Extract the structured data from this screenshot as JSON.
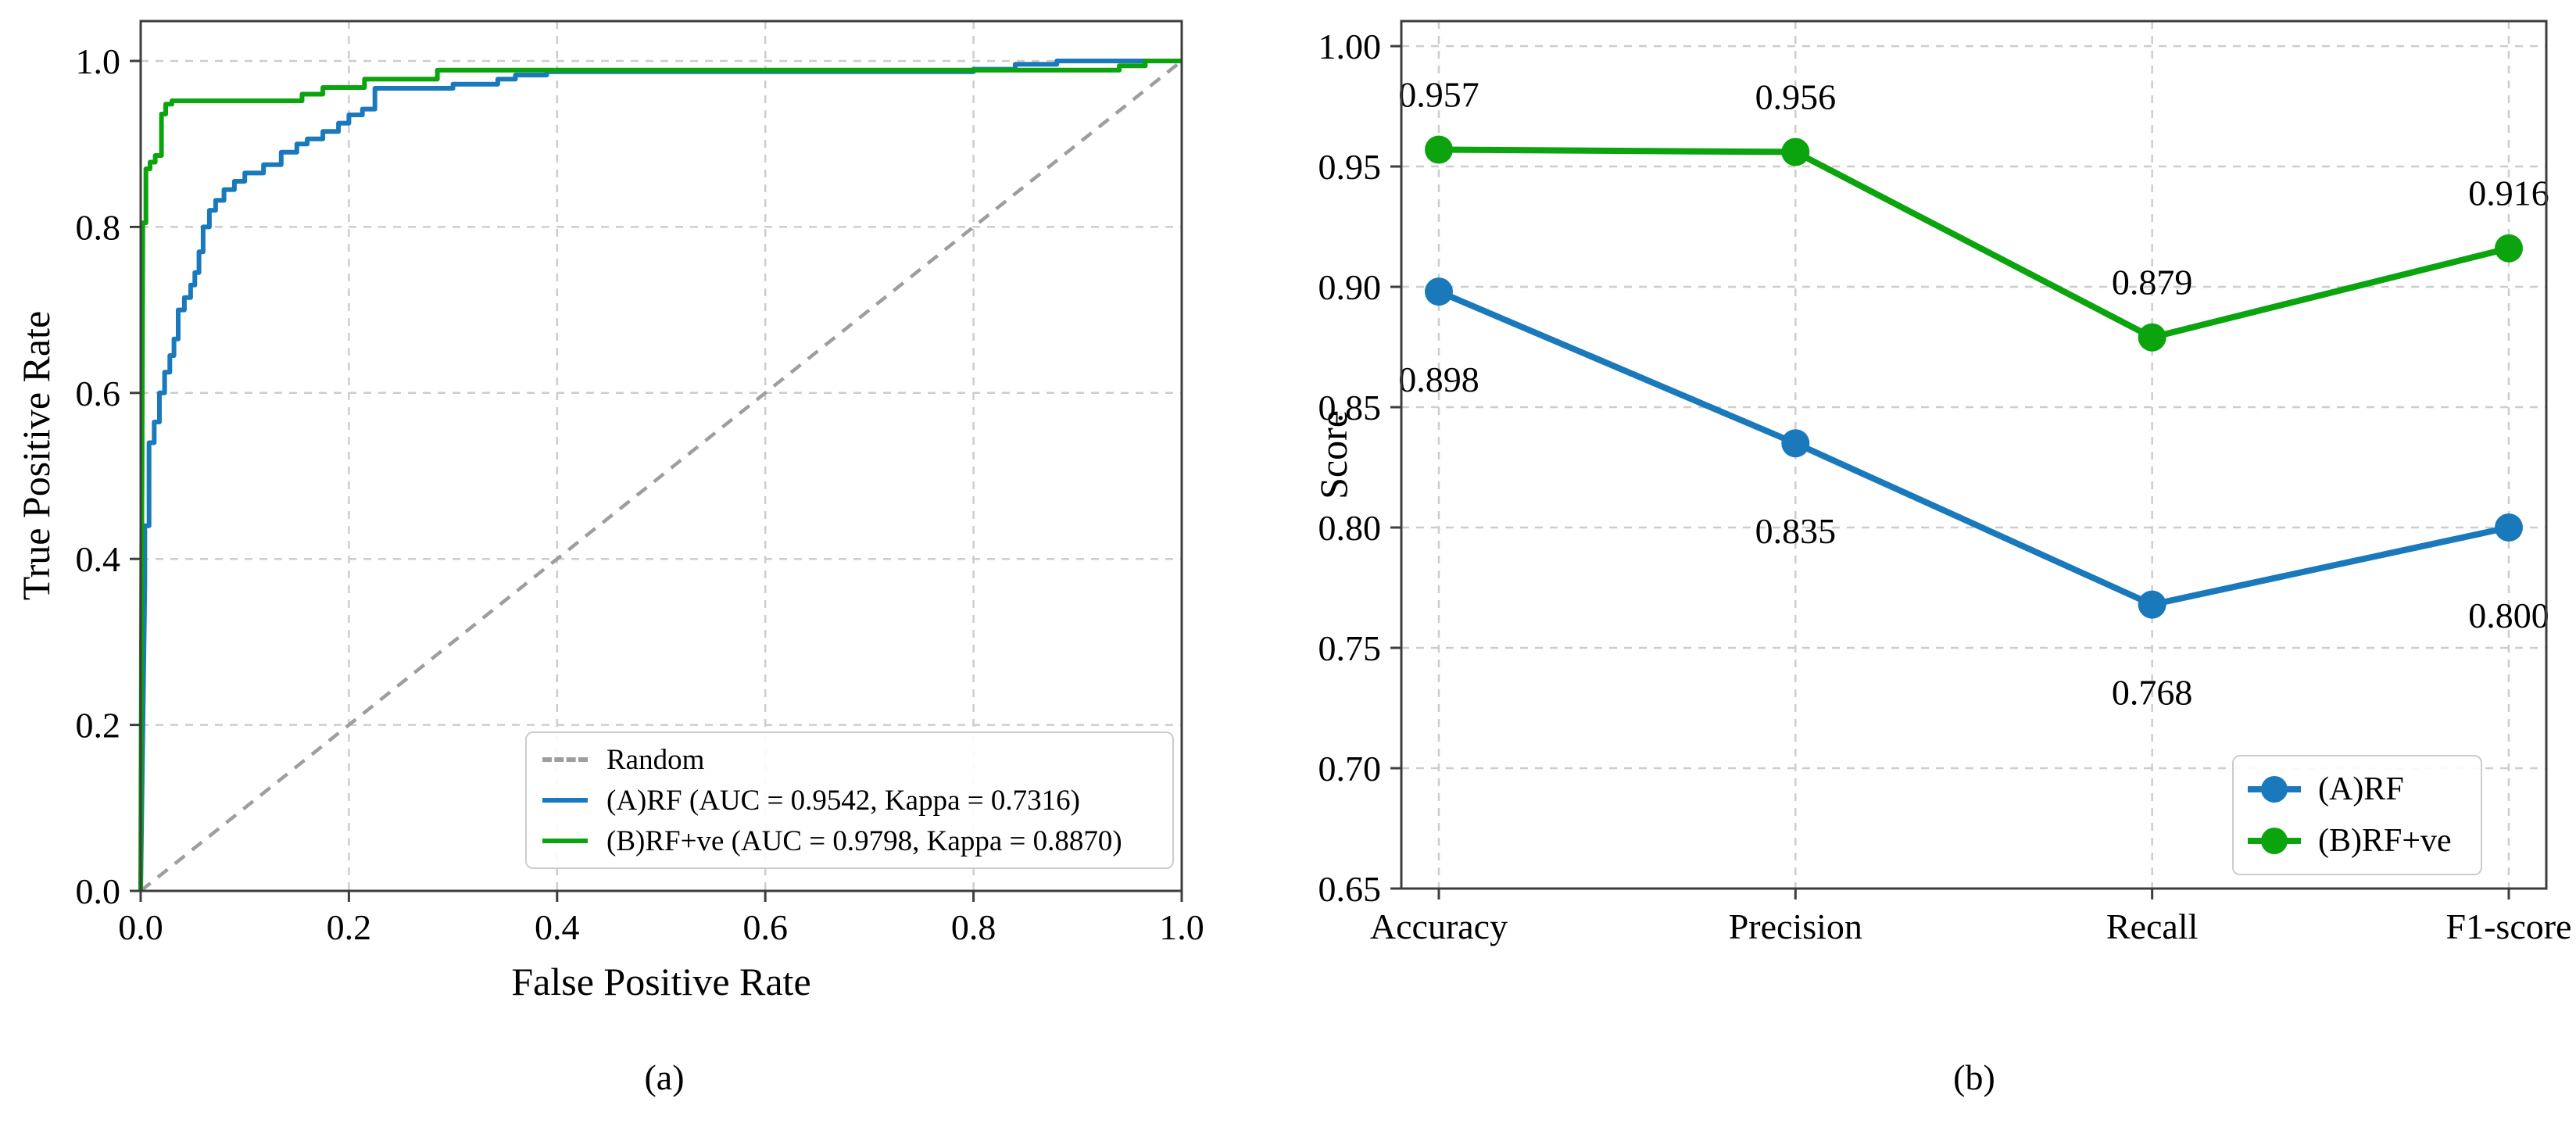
{
  "figure": {
    "background": "#ffffff"
  },
  "colors": {
    "blue": "#1a79bb",
    "green": "#0ba30e",
    "random_gray": "#9e9e9e",
    "grid": "#cdcdcd",
    "spine": "#3d3d3d",
    "text": "#000000"
  },
  "chart_data": [
    {
      "id": "roc",
      "type": "line",
      "panel": "a",
      "caption": "(a)",
      "xlabel": "False Positive Rate",
      "ylabel": "True Positive Rate",
      "xlim": [
        0,
        1
      ],
      "ylim": [
        0,
        1.048
      ],
      "grid": true,
      "legend_position": "lower right",
      "xticks": [
        0.0,
        0.2,
        0.4,
        0.6,
        0.8,
        1.0
      ],
      "xticklabels": [
        "0.0",
        "0.2",
        "0.4",
        "0.6",
        "0.8",
        "1.0"
      ],
      "yticks": [
        0.0,
        0.2,
        0.4,
        0.6,
        0.8,
        1.0
      ],
      "yticklabels": [
        "0.0",
        "0.2",
        "0.4",
        "0.6",
        "0.8",
        "1.0"
      ],
      "series": [
        {
          "name": "Random",
          "style": "dashed",
          "color": "#9e9e9e",
          "width": 4.5,
          "points": [
            [
              0,
              0
            ],
            [
              1,
              1
            ]
          ]
        },
        {
          "name": "(A)RF (AUC = 0.9542, Kappa = 0.7316)",
          "style": "solid",
          "color": "#1a79bb",
          "width": 6,
          "points": [
            [
              0.0,
              0.0
            ],
            [
              0.004,
              0.37
            ],
            [
              0.004,
              0.44
            ],
            [
              0.008,
              0.44
            ],
            [
              0.008,
              0.54
            ],
            [
              0.013,
              0.54
            ],
            [
              0.013,
              0.565
            ],
            [
              0.018,
              0.565
            ],
            [
              0.018,
              0.6
            ],
            [
              0.023,
              0.6
            ],
            [
              0.023,
              0.625
            ],
            [
              0.028,
              0.625
            ],
            [
              0.028,
              0.645
            ],
            [
              0.032,
              0.645
            ],
            [
              0.032,
              0.665
            ],
            [
              0.036,
              0.665
            ],
            [
              0.036,
              0.7
            ],
            [
              0.042,
              0.7
            ],
            [
              0.042,
              0.715
            ],
            [
              0.048,
              0.715
            ],
            [
              0.048,
              0.73
            ],
            [
              0.052,
              0.73
            ],
            [
              0.052,
              0.745
            ],
            [
              0.056,
              0.745
            ],
            [
              0.056,
              0.77
            ],
            [
              0.06,
              0.77
            ],
            [
              0.06,
              0.8
            ],
            [
              0.066,
              0.8
            ],
            [
              0.066,
              0.82
            ],
            [
              0.072,
              0.82
            ],
            [
              0.072,
              0.832
            ],
            [
              0.08,
              0.832
            ],
            [
              0.08,
              0.845
            ],
            [
              0.09,
              0.845
            ],
            [
              0.09,
              0.855
            ],
            [
              0.1,
              0.855
            ],
            [
              0.1,
              0.865
            ],
            [
              0.118,
              0.865
            ],
            [
              0.118,
              0.875
            ],
            [
              0.135,
              0.875
            ],
            [
              0.135,
              0.89
            ],
            [
              0.15,
              0.89
            ],
            [
              0.15,
              0.9
            ],
            [
              0.16,
              0.9
            ],
            [
              0.16,
              0.906
            ],
            [
              0.175,
              0.906
            ],
            [
              0.175,
              0.915
            ],
            [
              0.19,
              0.915
            ],
            [
              0.19,
              0.925
            ],
            [
              0.2,
              0.925
            ],
            [
              0.2,
              0.935
            ],
            [
              0.213,
              0.935
            ],
            [
              0.213,
              0.942
            ],
            [
              0.225,
              0.942
            ],
            [
              0.225,
              0.967
            ],
            [
              0.3,
              0.967
            ],
            [
              0.3,
              0.972
            ],
            [
              0.343,
              0.972
            ],
            [
              0.343,
              0.978
            ],
            [
              0.36,
              0.978
            ],
            [
              0.36,
              0.983
            ],
            [
              0.39,
              0.983
            ],
            [
              0.39,
              0.987
            ],
            [
              0.8,
              0.987
            ],
            [
              0.8,
              0.99
            ],
            [
              0.84,
              0.99
            ],
            [
              0.84,
              0.996
            ],
            [
              0.88,
              0.996
            ],
            [
              0.88,
              1.0
            ],
            [
              1.0,
              1.0
            ]
          ]
        },
        {
          "name": "(B)RF+ve (AUC = 0.9798, Kappa = 0.8870)",
          "style": "solid",
          "color": "#0ba30e",
          "width": 6,
          "points": [
            [
              0.0,
              0.0
            ],
            [
              0.002,
              0.79
            ],
            [
              0.002,
              0.805
            ],
            [
              0.005,
              0.805
            ],
            [
              0.005,
              0.87
            ],
            [
              0.009,
              0.87
            ],
            [
              0.009,
              0.878
            ],
            [
              0.014,
              0.878
            ],
            [
              0.014,
              0.886
            ],
            [
              0.02,
              0.886
            ],
            [
              0.02,
              0.936
            ],
            [
              0.024,
              0.936
            ],
            [
              0.024,
              0.948
            ],
            [
              0.03,
              0.948
            ],
            [
              0.03,
              0.952
            ],
            [
              0.155,
              0.952
            ],
            [
              0.155,
              0.96
            ],
            [
              0.175,
              0.96
            ],
            [
              0.175,
              0.968
            ],
            [
              0.215,
              0.968
            ],
            [
              0.215,
              0.978
            ],
            [
              0.285,
              0.978
            ],
            [
              0.285,
              0.989
            ],
            [
              0.94,
              0.989
            ],
            [
              0.94,
              0.994
            ],
            [
              0.965,
              0.994
            ],
            [
              0.965,
              1.0
            ],
            [
              1.0,
              1.0
            ]
          ]
        }
      ]
    },
    {
      "id": "metrics",
      "type": "line",
      "panel": "b",
      "caption": "(b)",
      "ylabel": "Score",
      "ylim": [
        0.65,
        1.0104
      ],
      "grid": true,
      "legend_position": "lower right",
      "categories": [
        "Accuracy",
        "Precision",
        "Recall",
        "F1-score"
      ],
      "yticks": [
        0.65,
        0.7,
        0.75,
        0.8,
        0.85,
        0.9,
        0.95,
        1.0
      ],
      "yticklabels": [
        "0.65",
        "0.70",
        "0.75",
        "0.80",
        "0.85",
        "0.90",
        "0.95",
        "1.00"
      ],
      "series": [
        {
          "name": "(A)RF",
          "color": "#1a79bb",
          "width": 8,
          "marker_radius": 18,
          "values": [
            0.898,
            0.835,
            0.768,
            0.8
          ],
          "value_labels": [
            "0.898",
            "0.835",
            "0.768",
            "0.800"
          ],
          "label_side": "below"
        },
        {
          "name": "(B)RF+ve",
          "color": "#0ba30e",
          "width": 8,
          "marker_radius": 18,
          "values": [
            0.957,
            0.956,
            0.879,
            0.916
          ],
          "value_labels": [
            "0.957",
            "0.956",
            "0.879",
            "0.916"
          ],
          "label_side": "above"
        }
      ]
    }
  ]
}
